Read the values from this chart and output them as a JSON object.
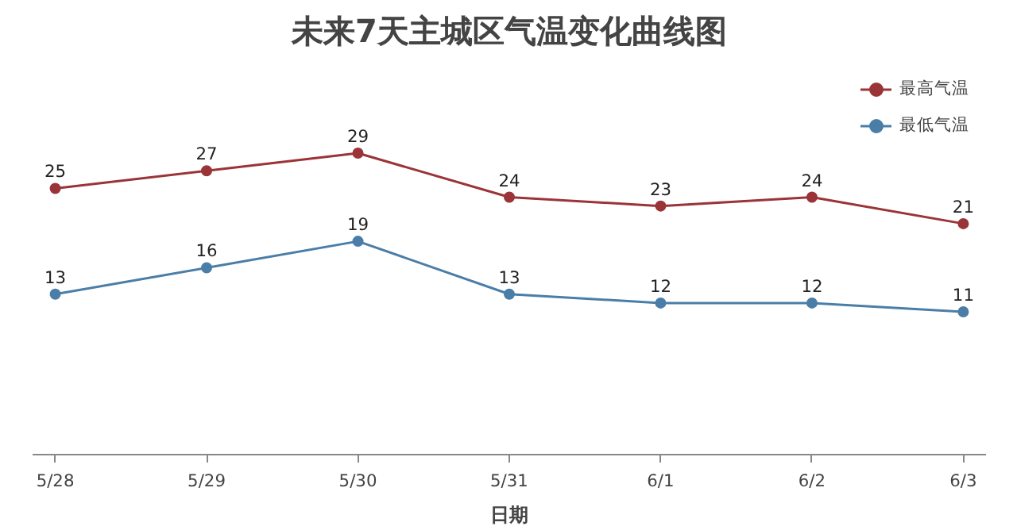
{
  "chart_data": {
    "type": "line",
    "title": "未来7天主城区气温变化曲线图",
    "xlabel": "日期",
    "categories": [
      "5/28",
      "5/29",
      "5/30",
      "5/31",
      "6/1",
      "6/2",
      "6/3"
    ],
    "series": [
      {
        "name": "最高气温",
        "color": "#9b3438",
        "values": [
          25,
          27,
          29,
          24,
          23,
          24,
          21
        ]
      },
      {
        "name": "最低气温",
        "color": "#4a7ea8",
        "values": [
          13,
          16,
          19,
          13,
          12,
          12,
          11
        ]
      }
    ],
    "tick_labels": "x",
    "data_labels": true,
    "grid": false,
    "legend": "top right",
    "marker": "circle",
    "line_style": "solid"
  }
}
